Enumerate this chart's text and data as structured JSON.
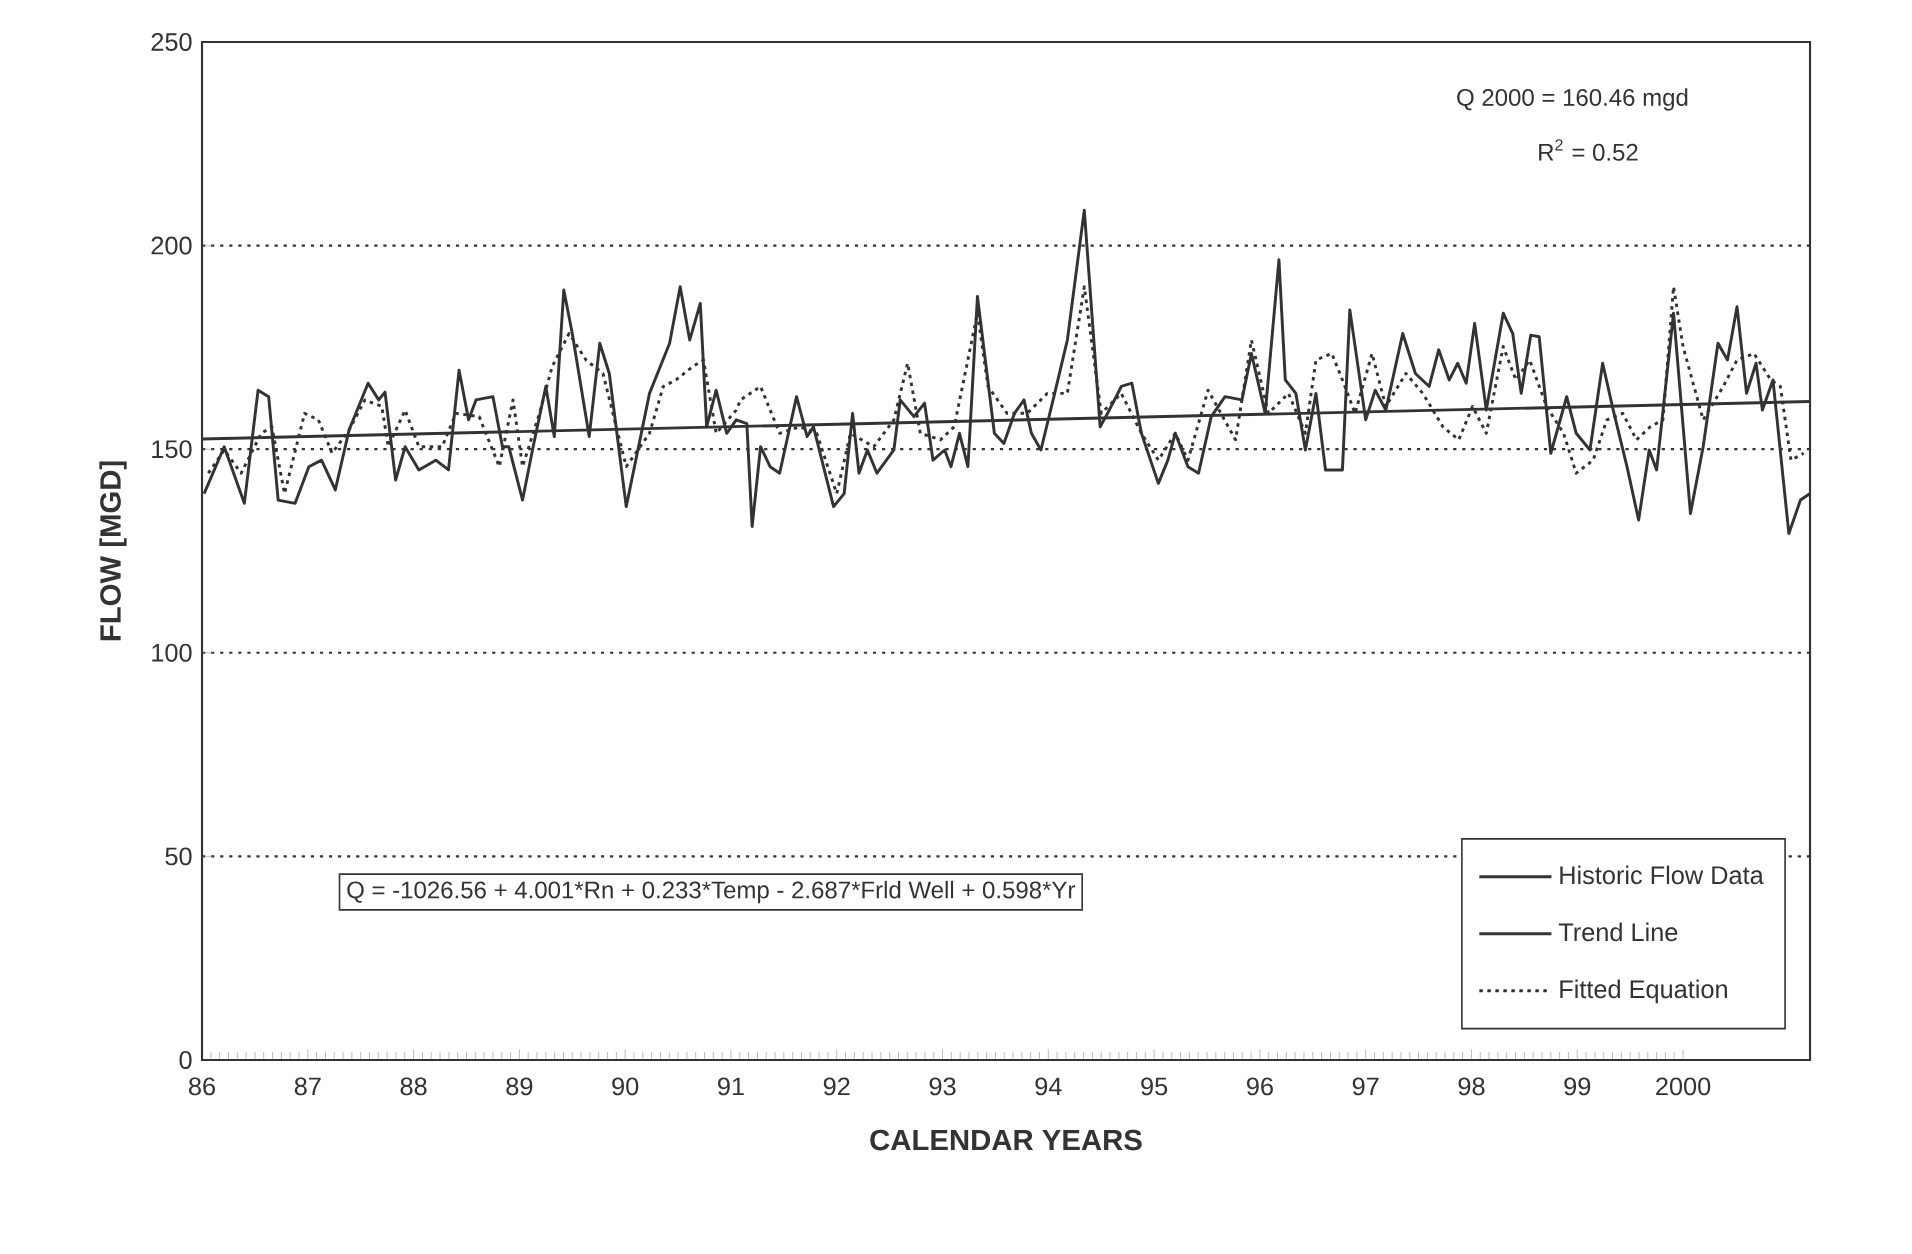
{
  "chart_data": {
    "type": "line",
    "xlabel": "CALENDAR YEARS",
    "ylabel": "FLOW [MGD]",
    "xlim": [
      1986,
      2001.2
    ],
    "ylim": [
      0,
      250
    ],
    "xticks": [
      {
        "value": 1986,
        "label": "86"
      },
      {
        "value": 1987,
        "label": "87"
      },
      {
        "value": 1988,
        "label": "88"
      },
      {
        "value": 1989,
        "label": "89"
      },
      {
        "value": 1990,
        "label": "90"
      },
      {
        "value": 1991,
        "label": "91"
      },
      {
        "value": 1992,
        "label": "92"
      },
      {
        "value": 1993,
        "label": "93"
      },
      {
        "value": 1994,
        "label": "94"
      },
      {
        "value": 1995,
        "label": "95"
      },
      {
        "value": 1996,
        "label": "96"
      },
      {
        "value": 1997,
        "label": "97"
      },
      {
        "value": 1998,
        "label": "98"
      },
      {
        "value": 1999,
        "label": "99"
      },
      {
        "value": 2000,
        "label": "2000"
      }
    ],
    "yticks": [
      0,
      50,
      100,
      150,
      200,
      250
    ],
    "grid": "y",
    "legend": "bottom right",
    "marker": "none",
    "annotations": [
      "Q 2000 = 160.46 mgd",
      "R$^{2}$ = 0.52",
      "Q = -1026.56 + 4.001*Rn + 0.233*Temp - 2.687*Frld Well + 0.598*Yr"
    ],
    "series": [
      {
        "name": "Historic Flow Data",
        "color": "#333333",
        "line_style": "solid",
        "x": [
          1986.02,
          1986.21,
          1986.4,
          1986.53,
          1986.63,
          1986.72,
          1986.88,
          1987.01,
          1987.13,
          1987.26,
          1987.39,
          1987.57,
          1987.67,
          1987.73,
          1987.83,
          1987.92,
          1988.05,
          1988.21,
          1988.33,
          1988.43,
          1988.52,
          1988.59,
          1988.75,
          1988.84,
          1988.9,
          1989.03,
          1989.13,
          1989.25,
          1989.33,
          1989.42,
          1989.5,
          1989.66,
          1989.76,
          1989.85,
          1990.01,
          1990.14,
          1990.23,
          1990.42,
          1990.52,
          1990.61,
          1990.71,
          1990.77,
          1990.86,
          1990.96,
          1991.05,
          1991.15,
          1991.2,
          1991.28,
          1991.37,
          1991.46,
          1991.62,
          1991.72,
          1991.78,
          1991.97,
          1992.07,
          1992.15,
          1992.21,
          1992.29,
          1992.38,
          1992.54,
          1992.6,
          1992.73,
          1992.83,
          1992.91,
          1993.02,
          1993.08,
          1993.16,
          1993.24,
          1993.33,
          1993.49,
          1993.58,
          1993.68,
          1993.77,
          1993.84,
          1993.93,
          1994.06,
          1994.18,
          1994.34,
          1994.49,
          1994.56,
          1994.69,
          1994.79,
          1994.88,
          1995.04,
          1995.13,
          1995.2,
          1995.32,
          1995.42,
          1995.54,
          1995.67,
          1995.83,
          1995.92,
          1996.05,
          1996.18,
          1996.24,
          1996.34,
          1996.43,
          1996.53,
          1996.62,
          1996.78,
          1996.85,
          1997.0,
          1997.09,
          1997.19,
          1997.35,
          1997.47,
          1997.6,
          1997.69,
          1997.79,
          1997.87,
          1997.95,
          1998.03,
          1998.14,
          1998.3,
          1998.39,
          1998.47,
          1998.56,
          1998.64,
          1998.75,
          1998.9,
          1998.99,
          1999.12,
          1999.24,
          1999.34,
          1999.47,
          1999.58,
          1999.68,
          1999.75,
          1999.91,
          2000.07,
          2000.19,
          2000.33,
          2000.42,
          2000.51,
          2000.6,
          2000.69,
          2000.75,
          2000.85,
          2001.0,
          2001.11,
          2001.2
        ],
        "values": [
          139.1,
          150.6,
          136.7,
          164.5,
          162.9,
          137.5,
          136.7,
          145.7,
          147.3,
          140.0,
          154.7,
          166.2,
          162.1,
          164.0,
          142.4,
          150.6,
          144.9,
          147.3,
          144.9,
          169.4,
          157.2,
          162.1,
          162.9,
          150.6,
          150.6,
          137.5,
          150.6,
          165.4,
          153.1,
          189.1,
          178.4,
          153.1,
          176.0,
          168.6,
          135.9,
          152.3,
          163.7,
          176.0,
          189.9,
          176.8,
          185.8,
          155.5,
          164.5,
          153.9,
          157.2,
          156.3,
          131.0,
          150.6,
          145.7,
          144.1,
          162.9,
          153.1,
          155.5,
          135.9,
          139.1,
          158.8,
          144.1,
          149.8,
          144.1,
          149.8,
          162.1,
          158.0,
          161.3,
          147.3,
          149.8,
          145.7,
          153.9,
          145.7,
          187.5,
          153.9,
          151.4,
          158.8,
          162.1,
          153.9,
          149.8,
          163.7,
          176.8,
          208.7,
          155.5,
          158.8,
          165.4,
          166.2,
          153.9,
          141.6,
          147.3,
          153.9,
          145.7,
          144.1,
          158.0,
          162.9,
          162.1,
          173.5,
          158.8,
          196.5,
          167.0,
          163.7,
          149.8,
          163.7,
          144.9,
          144.9,
          184.2,
          157.2,
          164.5,
          159.6,
          178.4,
          168.6,
          165.4,
          174.4,
          167.0,
          171.1,
          166.2,
          180.9,
          159.6,
          183.4,
          178.4,
          163.7,
          178.0,
          177.6,
          149.0,
          162.9,
          153.9,
          149.8,
          171.1,
          159.6,
          145.7,
          132.6,
          149.8,
          144.9,
          183.4,
          134.2,
          150.6,
          176.0,
          171.9,
          185.0,
          163.7,
          171.1,
          159.6,
          167.0,
          129.3,
          137.5,
          139.1
        ]
      },
      {
        "name": "Trend Line",
        "color": "#333333",
        "line_style": "solid",
        "x": [
          1986,
          2001.2
        ],
        "values": [
          152.5,
          161.7
        ]
      },
      {
        "name": "Fitted Equation",
        "color": "#333333",
        "line_style": "dotted",
        "x": [
          1986.06,
          1986.21,
          1986.37,
          1986.56,
          1986.66,
          1986.78,
          1986.97,
          1987.1,
          1987.23,
          1987.39,
          1987.54,
          1987.7,
          1987.76,
          1987.92,
          1988.05,
          1988.27,
          1988.4,
          1988.62,
          1988.81,
          1988.94,
          1989.03,
          1989.19,
          1989.31,
          1989.47,
          1989.63,
          1989.79,
          1990.01,
          1990.23,
          1990.36,
          1990.48,
          1990.64,
          1990.74,
          1990.86,
          1991.05,
          1991.09,
          1991.28,
          1991.46,
          1991.65,
          1991.81,
          1992.0,
          1992.13,
          1992.35,
          1992.54,
          1992.67,
          1992.79,
          1992.98,
          1993.11,
          1993.33,
          1993.43,
          1993.61,
          1993.8,
          1993.99,
          1994.18,
          1994.34,
          1994.5,
          1994.69,
          1994.88,
          1995.04,
          1995.2,
          1995.32,
          1995.51,
          1995.77,
          1995.92,
          1996.08,
          1996.27,
          1996.43,
          1996.53,
          1996.68,
          1996.78,
          1996.9,
          1997.06,
          1997.19,
          1997.38,
          1997.54,
          1997.73,
          1997.88,
          1998.01,
          1998.14,
          1998.3,
          1998.42,
          1998.55,
          1998.71,
          1998.87,
          1998.99,
          1999.15,
          1999.28,
          1999.43,
          1999.56,
          1999.69,
          1999.81,
          1999.91,
          2000.0,
          2000.19,
          2000.38,
          2000.51,
          2000.67,
          2000.83,
          2000.92,
          2001.02,
          2001.14
        ],
        "values": [
          144.1,
          149.8,
          144.1,
          153.9,
          155.5,
          139.1,
          158.8,
          157.2,
          149.0,
          154.7,
          162.1,
          160.5,
          150.6,
          159.6,
          150.6,
          150.6,
          158.8,
          158.0,
          145.7,
          162.1,
          145.7,
          158.8,
          170.3,
          178.4,
          171.9,
          168.6,
          145.7,
          153.9,
          165.4,
          167.0,
          170.3,
          171.9,
          153.9,
          159.6,
          162.1,
          165.4,
          153.9,
          155.5,
          153.9,
          139.1,
          153.9,
          150.6,
          157.2,
          171.1,
          153.9,
          152.3,
          155.5,
          183.4,
          165.4,
          158.8,
          158.8,
          163.7,
          163.7,
          189.9,
          158.8,
          163.7,
          153.9,
          147.3,
          153.9,
          147.3,
          164.5,
          152.3,
          176.8,
          158.8,
          163.7,
          153.9,
          171.9,
          173.5,
          167.0,
          158.8,
          173.5,
          160.5,
          168.6,
          163.7,
          155.5,
          152.3,
          160.5,
          153.9,
          175.2,
          167.0,
          171.9,
          160.5,
          153.9,
          144.1,
          147.3,
          157.2,
          158.8,
          152.3,
          155.5,
          157.2,
          189.9,
          175.2,
          157.2,
          165.4,
          171.9,
          173.5,
          167.0,
          165.4,
          147.3,
          149.0
        ]
      }
    ]
  }
}
